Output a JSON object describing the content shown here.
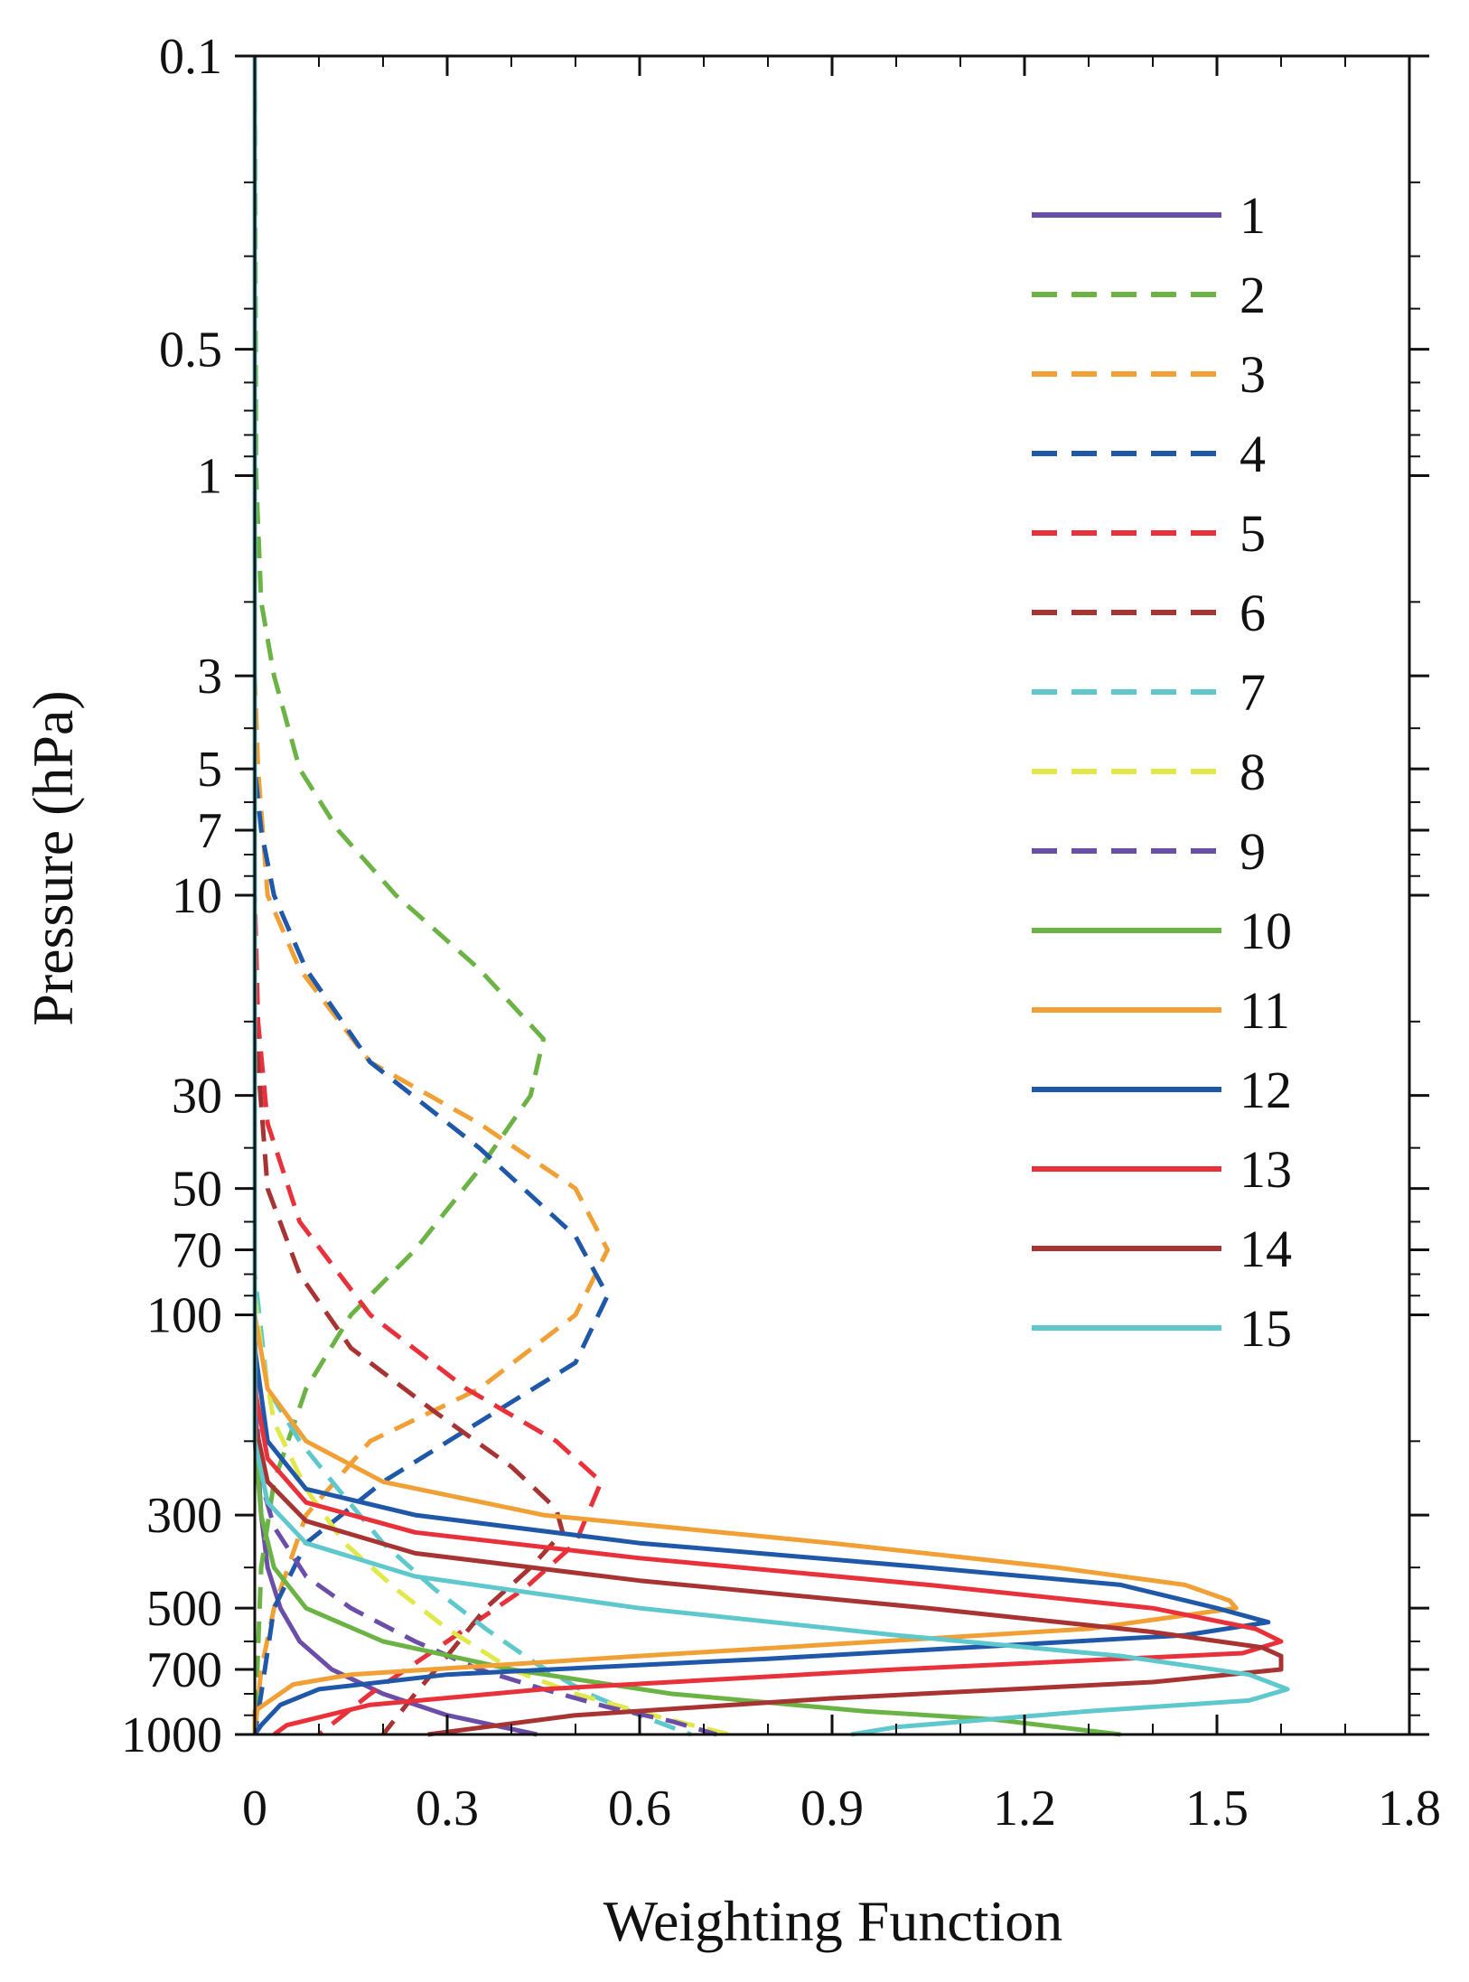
{
  "chart_data": {
    "type": "line",
    "title": "",
    "xlabel": "Weighting Function",
    "ylabel": "Pressure (hPa)",
    "xlim": [
      0,
      1.8
    ],
    "ylim": [
      1000,
      0.1
    ],
    "yscale": "log",
    "x_ticks": [
      0,
      0.3,
      0.6,
      0.9,
      1.2,
      1.5,
      1.8
    ],
    "x_tick_labels": [
      "0",
      "0.3",
      "0.6",
      "0.9",
      "1.2",
      "1.5",
      "1.8"
    ],
    "y_ticks": [
      0.1,
      0.5,
      1,
      3,
      5,
      7,
      10,
      30,
      50,
      70,
      100,
      300,
      500,
      700,
      1000
    ],
    "y_tick_labels": [
      "0.1",
      "0.5",
      "1",
      "3",
      "5",
      "7",
      "10",
      "30",
      "50",
      "70",
      "100",
      "300",
      "500",
      "700",
      "1000"
    ],
    "legend_position": "top-right",
    "series": [
      {
        "name": "1",
        "color": "#6b4ea8",
        "dash": "solid",
        "points": [
          [
            0.0,
            0.1
          ],
          [
            0.0,
            100
          ],
          [
            0.003,
            200
          ],
          [
            0.01,
            300
          ],
          [
            0.02,
            400
          ],
          [
            0.04,
            500
          ],
          [
            0.07,
            600
          ],
          [
            0.12,
            700
          ],
          [
            0.2,
            800
          ],
          [
            0.3,
            900
          ],
          [
            0.44,
            1000
          ]
        ]
      },
      {
        "name": "2",
        "color": "#6ab344",
        "dash": "dashed",
        "points": [
          [
            0.0,
            0.1
          ],
          [
            0.002,
            1
          ],
          [
            0.01,
            2
          ],
          [
            0.03,
            3
          ],
          [
            0.07,
            5
          ],
          [
            0.13,
            7
          ],
          [
            0.22,
            10
          ],
          [
            0.35,
            15
          ],
          [
            0.45,
            22
          ],
          [
            0.43,
            30
          ],
          [
            0.35,
            45
          ],
          [
            0.25,
            70
          ],
          [
            0.15,
            100
          ],
          [
            0.08,
            150
          ],
          [
            0.03,
            250
          ],
          [
            0.01,
            400
          ],
          [
            0.0,
            1000
          ]
        ]
      },
      {
        "name": "3",
        "color": "#f0a035",
        "dash": "dashed",
        "points": [
          [
            0.0,
            0.1
          ],
          [
            0.0,
            3
          ],
          [
            0.005,
            5
          ],
          [
            0.02,
            10
          ],
          [
            0.07,
            15
          ],
          [
            0.18,
            25
          ],
          [
            0.35,
            35
          ],
          [
            0.5,
            50
          ],
          [
            0.55,
            70
          ],
          [
            0.5,
            100
          ],
          [
            0.35,
            150
          ],
          [
            0.18,
            200
          ],
          [
            0.08,
            300
          ],
          [
            0.03,
            500
          ],
          [
            0.01,
            700
          ],
          [
            0.0,
            1000
          ]
        ]
      },
      {
        "name": "4",
        "color": "#1f58a8",
        "dash": "dashed",
        "points": [
          [
            0.0,
            0.1
          ],
          [
            0.0,
            5
          ],
          [
            0.01,
            7
          ],
          [
            0.03,
            10
          ],
          [
            0.08,
            15
          ],
          [
            0.18,
            25
          ],
          [
            0.35,
            40
          ],
          [
            0.5,
            65
          ],
          [
            0.55,
            90
          ],
          [
            0.5,
            130
          ],
          [
            0.35,
            180
          ],
          [
            0.2,
            250
          ],
          [
            0.08,
            350
          ],
          [
            0.03,
            500
          ],
          [
            0.01,
            800
          ],
          [
            0.0,
            1000
          ]
        ]
      },
      {
        "name": "5",
        "color": "#e8313a",
        "dash": "dashed",
        "points": [
          [
            0.0,
            0.1
          ],
          [
            0.0,
            10
          ],
          [
            0.005,
            20
          ],
          [
            0.02,
            35
          ],
          [
            0.07,
            60
          ],
          [
            0.18,
            100
          ],
          [
            0.33,
            150
          ],
          [
            0.47,
            200
          ],
          [
            0.54,
            250
          ],
          [
            0.5,
            350
          ],
          [
            0.42,
            450
          ],
          [
            0.3,
            600
          ],
          [
            0.18,
            800
          ],
          [
            0.1,
            1000
          ]
        ]
      },
      {
        "name": "6",
        "color": "#a83333",
        "dash": "dashed",
        "points": [
          [
            0.0,
            0.1
          ],
          [
            0.0,
            20
          ],
          [
            0.02,
            50
          ],
          [
            0.07,
            80
          ],
          [
            0.15,
            120
          ],
          [
            0.28,
            170
          ],
          [
            0.4,
            230
          ],
          [
            0.47,
            290
          ],
          [
            0.48,
            330
          ],
          [
            0.43,
            400
          ],
          [
            0.36,
            500
          ],
          [
            0.3,
            650
          ],
          [
            0.25,
            800
          ],
          [
            0.2,
            1000
          ]
        ]
      },
      {
        "name": "7",
        "color": "#5fc8cc",
        "dash": "dashed",
        "points": [
          [
            0.0,
            0.1
          ],
          [
            0.0,
            80
          ],
          [
            0.02,
            150
          ],
          [
            0.07,
            200
          ],
          [
            0.13,
            260
          ],
          [
            0.2,
            350
          ],
          [
            0.28,
            450
          ],
          [
            0.36,
            560
          ],
          [
            0.44,
            680
          ],
          [
            0.52,
            800
          ],
          [
            0.6,
            900
          ],
          [
            0.68,
            1000
          ]
        ]
      },
      {
        "name": "8",
        "color": "#e0e84a",
        "dash": "dashed",
        "points": [
          [
            0.0,
            0.1
          ],
          [
            0.0,
            90
          ],
          [
            0.01,
            120
          ],
          [
            0.03,
            180
          ],
          [
            0.08,
            260
          ],
          [
            0.14,
            350
          ],
          [
            0.22,
            450
          ],
          [
            0.3,
            560
          ],
          [
            0.4,
            700
          ],
          [
            0.5,
            800
          ],
          [
            0.62,
            900
          ],
          [
            0.74,
            1000
          ]
        ]
      },
      {
        "name": "9",
        "color": "#6b4ea8",
        "dash": "dashed",
        "points": [
          [
            0.0,
            0.1
          ],
          [
            0.0,
            150
          ],
          [
            0.01,
            250
          ],
          [
            0.03,
            320
          ],
          [
            0.08,
            420
          ],
          [
            0.15,
            500
          ],
          [
            0.25,
            600
          ],
          [
            0.35,
            700
          ],
          [
            0.45,
            780
          ],
          [
            0.55,
            860
          ],
          [
            0.65,
            930
          ],
          [
            0.72,
            1000
          ]
        ]
      },
      {
        "name": "10",
        "color": "#6ab344",
        "dash": "solid",
        "points": [
          [
            0.0,
            0.1
          ],
          [
            0.0,
            200
          ],
          [
            0.01,
            300
          ],
          [
            0.03,
            400
          ],
          [
            0.08,
            500
          ],
          [
            0.2,
            600
          ],
          [
            0.4,
            700
          ],
          [
            0.65,
            800
          ],
          [
            0.95,
            880
          ],
          [
            1.15,
            920
          ],
          [
            1.35,
            1000
          ]
        ]
      },
      {
        "name": "11",
        "color": "#f0a035",
        "dash": "solid",
        "points": [
          [
            0.0,
            0.1
          ],
          [
            0.0,
            100
          ],
          [
            0.02,
            150
          ],
          [
            0.08,
            200
          ],
          [
            0.2,
            250
          ],
          [
            0.45,
            300
          ],
          [
            0.9,
            350
          ],
          [
            1.25,
            400
          ],
          [
            1.45,
            440
          ],
          [
            1.52,
            480
          ],
          [
            1.53,
            500
          ],
          [
            1.3,
            560
          ],
          [
            0.6,
            650
          ],
          [
            0.15,
            720
          ],
          [
            0.06,
            760
          ],
          [
            0.0,
            880
          ],
          [
            0.0,
            1000
          ]
        ]
      },
      {
        "name": "12",
        "color": "#1f58a8",
        "dash": "solid",
        "points": [
          [
            0.0,
            0.1
          ],
          [
            0.0,
            120
          ],
          [
            0.02,
            200
          ],
          [
            0.08,
            260
          ],
          [
            0.25,
            300
          ],
          [
            0.6,
            350
          ],
          [
            1.05,
            400
          ],
          [
            1.35,
            440
          ],
          [
            1.5,
            500
          ],
          [
            1.58,
            540
          ],
          [
            1.45,
            580
          ],
          [
            0.8,
            660
          ],
          [
            0.3,
            720
          ],
          [
            0.1,
            780
          ],
          [
            0.04,
            850
          ],
          [
            0.01,
            950
          ],
          [
            0.0,
            1000
          ]
        ]
      },
      {
        "name": "13",
        "color": "#e8313a",
        "dash": "solid",
        "points": [
          [
            0.0,
            0.1
          ],
          [
            0.0,
            150
          ],
          [
            0.02,
            220
          ],
          [
            0.08,
            280
          ],
          [
            0.25,
            330
          ],
          [
            0.6,
            380
          ],
          [
            1.05,
            440
          ],
          [
            1.4,
            500
          ],
          [
            1.56,
            560
          ],
          [
            1.6,
            600
          ],
          [
            1.54,
            640
          ],
          [
            1.0,
            700
          ],
          [
            0.45,
            780
          ],
          [
            0.18,
            850
          ],
          [
            0.05,
            950
          ],
          [
            0.03,
            1000
          ]
        ]
      },
      {
        "name": "14",
        "color": "#a83333",
        "dash": "solid",
        "points": [
          [
            0.0,
            0.1
          ],
          [
            0.0,
            180
          ],
          [
            0.02,
            250
          ],
          [
            0.08,
            310
          ],
          [
            0.25,
            370
          ],
          [
            0.6,
            430
          ],
          [
            1.05,
            500
          ],
          [
            1.4,
            570
          ],
          [
            1.57,
            620
          ],
          [
            1.6,
            650
          ],
          [
            1.6,
            700
          ],
          [
            1.4,
            750
          ],
          [
            0.9,
            820
          ],
          [
            0.5,
            900
          ],
          [
            0.27,
            1000
          ]
        ]
      },
      {
        "name": "15",
        "color": "#5fc8cc",
        "dash": "solid",
        "points": [
          [
            0.0,
            0.1
          ],
          [
            0.0,
            200
          ],
          [
            0.02,
            280
          ],
          [
            0.08,
            350
          ],
          [
            0.25,
            420
          ],
          [
            0.6,
            500
          ],
          [
            1.0,
            580
          ],
          [
            1.35,
            650
          ],
          [
            1.55,
            720
          ],
          [
            1.61,
            780
          ],
          [
            1.55,
            830
          ],
          [
            1.3,
            880
          ],
          [
            1.0,
            960
          ],
          [
            0.93,
            1000
          ]
        ]
      }
    ]
  }
}
